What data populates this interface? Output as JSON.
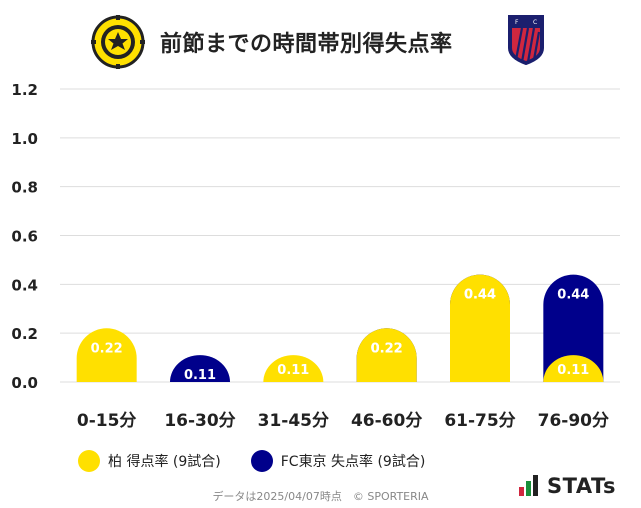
{
  "header": {
    "title": "前節までの時間帯別得失点率"
  },
  "logos": {
    "left_lettering": "KASHIWA REYSOL",
    "right_lettering": "F C TOKYO"
  },
  "legend": {
    "series_a": "柏 得点率 (9試合)",
    "series_b": "FC東京 失点率 (9試合)"
  },
  "footer": {
    "note": "データは2025/04/07時点　© SPORTERIA",
    "brand": "STATs"
  },
  "colors": {
    "yellow": "#FFE000",
    "navy": "#00008B",
    "grid": "#DDDDDD"
  },
  "chart_data": {
    "type": "bar",
    "stacking": "overlapping rounded bars (yellow drawn in front of navy)",
    "categories": [
      "0-15分",
      "16-30分",
      "31-45分",
      "46-60分",
      "61-75分",
      "76-90分"
    ],
    "series": [
      {
        "name": "柏 得点率 (9試合)",
        "values": [
          0.22,
          0.0,
          0.11,
          0.22,
          0.44,
          0.11
        ],
        "labels": [
          "0.22",
          "",
          "0.11",
          "0.22",
          "0.44",
          "0.11"
        ],
        "color": "#FFE000"
      },
      {
        "name": "FC東京 失点率 (9試合)",
        "values": [
          0.0,
          0.11,
          0.0,
          0.22,
          0.44,
          0.44
        ],
        "labels": [
          "",
          "0.11",
          "",
          "0.22",
          "0.44",
          "0.44"
        ],
        "color": "#00008B"
      }
    ],
    "yticks": [
      "0.0",
      "0.2",
      "0.4",
      "0.6",
      "0.8",
      "1.0",
      "1.2"
    ],
    "ylim": [
      0,
      1.2
    ],
    "grid": true,
    "legend_position": "bottom"
  }
}
